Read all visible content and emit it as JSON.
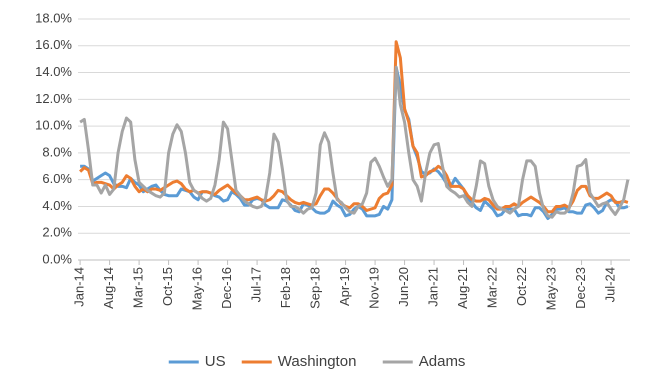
{
  "chart_data": {
    "type": "line",
    "categories": [
      "Jan-14",
      null,
      null,
      null,
      null,
      null,
      null,
      "Aug-14",
      null,
      null,
      null,
      null,
      null,
      null,
      "Mar-15",
      null,
      null,
      null,
      null,
      null,
      null,
      "Oct-15",
      null,
      null,
      null,
      null,
      null,
      null,
      "May-16",
      null,
      null,
      null,
      null,
      null,
      null,
      "Dec-16",
      null,
      null,
      null,
      null,
      null,
      null,
      "Jul-17",
      null,
      null,
      null,
      null,
      null,
      null,
      "Feb-18",
      null,
      null,
      null,
      null,
      null,
      null,
      "Sep-18",
      null,
      null,
      null,
      null,
      null,
      null,
      "Apr-19",
      null,
      null,
      null,
      null,
      null,
      null,
      "Nov-19",
      null,
      null,
      null,
      null,
      null,
      null,
      "Jun-20",
      null,
      null,
      null,
      null,
      null,
      null,
      "Jan-21",
      null,
      null,
      null,
      null,
      null,
      null,
      "Aug-21",
      null,
      null,
      null,
      null,
      null,
      null,
      "Mar-22",
      null,
      null,
      null,
      null,
      null,
      null,
      "Oct-22",
      null,
      null,
      null,
      null,
      null,
      null,
      "May-23",
      null,
      null,
      null,
      null,
      null,
      null,
      "Dec-23",
      null,
      null,
      null,
      null,
      null,
      null,
      "Jul-24",
      null,
      null,
      null,
      null
    ],
    "series": [
      {
        "name": "US",
        "color": "#5b9bd5",
        "values": [
          7.0,
          7.0,
          6.8,
          5.9,
          6.1,
          6.3,
          6.5,
          6.3,
          5.7,
          5.5,
          5.5,
          5.4,
          6.1,
          5.8,
          5.6,
          5.1,
          5.3,
          5.5,
          5.6,
          5.2,
          4.9,
          4.8,
          4.8,
          4.8,
          5.3,
          5.2,
          5.1,
          4.7,
          4.5,
          5.1,
          5.1,
          5.0,
          4.8,
          4.7,
          4.4,
          4.5,
          5.1,
          4.9,
          4.6,
          4.1,
          4.1,
          4.5,
          4.6,
          4.5,
          4.1,
          3.9,
          3.9,
          3.9,
          4.5,
          4.4,
          4.1,
          3.7,
          3.6,
          4.2,
          4.1,
          3.9,
          3.6,
          3.5,
          3.5,
          3.7,
          4.4,
          4.1,
          3.9,
          3.3,
          3.4,
          3.8,
          4.0,
          3.8,
          3.3,
          3.3,
          3.3,
          3.4,
          4.0,
          3.8,
          4.5,
          14.4,
          13.0,
          11.2,
          10.5,
          8.5,
          7.7,
          6.6,
          6.4,
          6.5,
          6.8,
          6.6,
          6.2,
          5.7,
          5.5,
          6.1,
          5.7,
          5.3,
          4.6,
          4.3,
          3.9,
          3.7,
          4.4,
          4.1,
          3.8,
          3.3,
          3.4,
          3.8,
          3.8,
          3.8,
          3.3,
          3.4,
          3.4,
          3.3,
          3.9,
          3.9,
          3.6,
          3.1,
          3.4,
          3.8,
          3.8,
          3.9,
          3.6,
          3.6,
          3.5,
          3.5,
          4.1,
          4.2,
          3.9,
          3.5,
          3.7,
          4.3,
          4.5,
          4.4,
          3.9,
          3.9,
          4.0
        ]
      },
      {
        "name": "Washington",
        "color": "#ed7d31",
        "values": [
          6.6,
          6.9,
          6.7,
          5.7,
          5.8,
          5.8,
          5.7,
          5.6,
          5.3,
          5.6,
          5.8,
          6.3,
          6.1,
          5.5,
          5.1,
          5.3,
          5.1,
          5.3,
          5.3,
          5.2,
          5.4,
          5.6,
          5.8,
          5.9,
          5.7,
          5.3,
          5.1,
          5.2,
          5.0,
          5.1,
          5.1,
          5.0,
          4.9,
          5.2,
          5.4,
          5.6,
          5.3,
          5.0,
          4.8,
          4.5,
          4.5,
          4.6,
          4.7,
          4.5,
          4.4,
          4.5,
          4.8,
          5.2,
          5.1,
          4.8,
          4.5,
          4.3,
          4.2,
          4.3,
          4.2,
          4.1,
          4.2,
          4.8,
          5.3,
          5.3,
          5.0,
          4.6,
          4.2,
          4.0,
          3.9,
          4.2,
          4.2,
          4.0,
          3.7,
          3.8,
          3.9,
          4.6,
          4.9,
          5.0,
          5.6,
          16.3,
          15.1,
          11.3,
          10.3,
          8.5,
          8.0,
          6.2,
          6.3,
          6.6,
          6.7,
          7.0,
          6.8,
          6.3,
          5.5,
          5.5,
          5.5,
          5.3,
          4.8,
          4.5,
          4.4,
          4.4,
          4.6,
          4.5,
          4.1,
          3.8,
          3.8,
          4.0,
          4.0,
          4.2,
          4.0,
          4.3,
          4.5,
          4.7,
          4.5,
          4.3,
          4.0,
          3.6,
          3.6,
          4.0,
          4.0,
          4.1,
          3.9,
          4.4,
          5.2,
          5.5,
          5.5,
          4.8,
          4.6,
          4.6,
          4.8,
          5.0,
          4.8,
          4.3,
          4.3,
          4.4,
          4.3
        ]
      },
      {
        "name": "Adams",
        "color": "#a5a5a5",
        "values": [
          10.3,
          10.5,
          8.2,
          5.6,
          5.6,
          5.0,
          5.6,
          4.9,
          5.3,
          8.0,
          9.6,
          10.6,
          10.3,
          7.5,
          5.8,
          5.5,
          5.2,
          5.0,
          4.8,
          4.7,
          5.0,
          8.0,
          9.4,
          10.1,
          9.6,
          8.0,
          5.8,
          5.2,
          5.0,
          4.6,
          4.4,
          4.6,
          5.6,
          7.5,
          10.3,
          9.8,
          7.5,
          5.2,
          4.8,
          4.4,
          4.2,
          4.0,
          3.9,
          4.0,
          4.6,
          6.5,
          9.4,
          8.8,
          6.8,
          4.5,
          4.0,
          4.0,
          3.8,
          3.5,
          3.8,
          3.9,
          5.0,
          8.6,
          9.5,
          8.8,
          6.5,
          4.5,
          4.3,
          3.9,
          3.6,
          3.5,
          4.0,
          4.2,
          5.0,
          7.3,
          7.6,
          7.0,
          6.2,
          5.5,
          6.0,
          14.4,
          11.6,
          10.3,
          8.0,
          6.0,
          5.5,
          4.4,
          6.5,
          8.0,
          8.6,
          8.7,
          7.0,
          5.5,
          5.2,
          5.0,
          4.7,
          4.8,
          4.3,
          4.0,
          5.5,
          7.4,
          7.2,
          5.5,
          4.5,
          4.0,
          3.8,
          3.7,
          3.5,
          3.8,
          4.0,
          6.0,
          7.4,
          7.4,
          7.0,
          5.0,
          3.8,
          3.3,
          3.2,
          3.6,
          3.5,
          3.5,
          3.8,
          5.0,
          7.0,
          7.1,
          7.5,
          5.0,
          4.5,
          4.0,
          4.2,
          4.3,
          3.8,
          3.4,
          3.9,
          4.5,
          6.0
        ]
      }
    ],
    "ylim": [
      0,
      18
    ],
    "yticks": [
      {
        "value": 0,
        "label": "0.0%"
      },
      {
        "value": 2,
        "label": "2.0%"
      },
      {
        "value": 4,
        "label": "4.0%"
      },
      {
        "value": 6,
        "label": "6.0%"
      },
      {
        "value": 8,
        "label": "8.0%"
      },
      {
        "value": 10,
        "label": "10.0%"
      },
      {
        "value": 12,
        "label": "12.0%"
      },
      {
        "value": 14,
        "label": "14.0%"
      },
      {
        "value": 16,
        "label": "16.0%"
      },
      {
        "value": 18,
        "label": "18.0%"
      }
    ],
    "grid": true,
    "legend": "bottom"
  }
}
